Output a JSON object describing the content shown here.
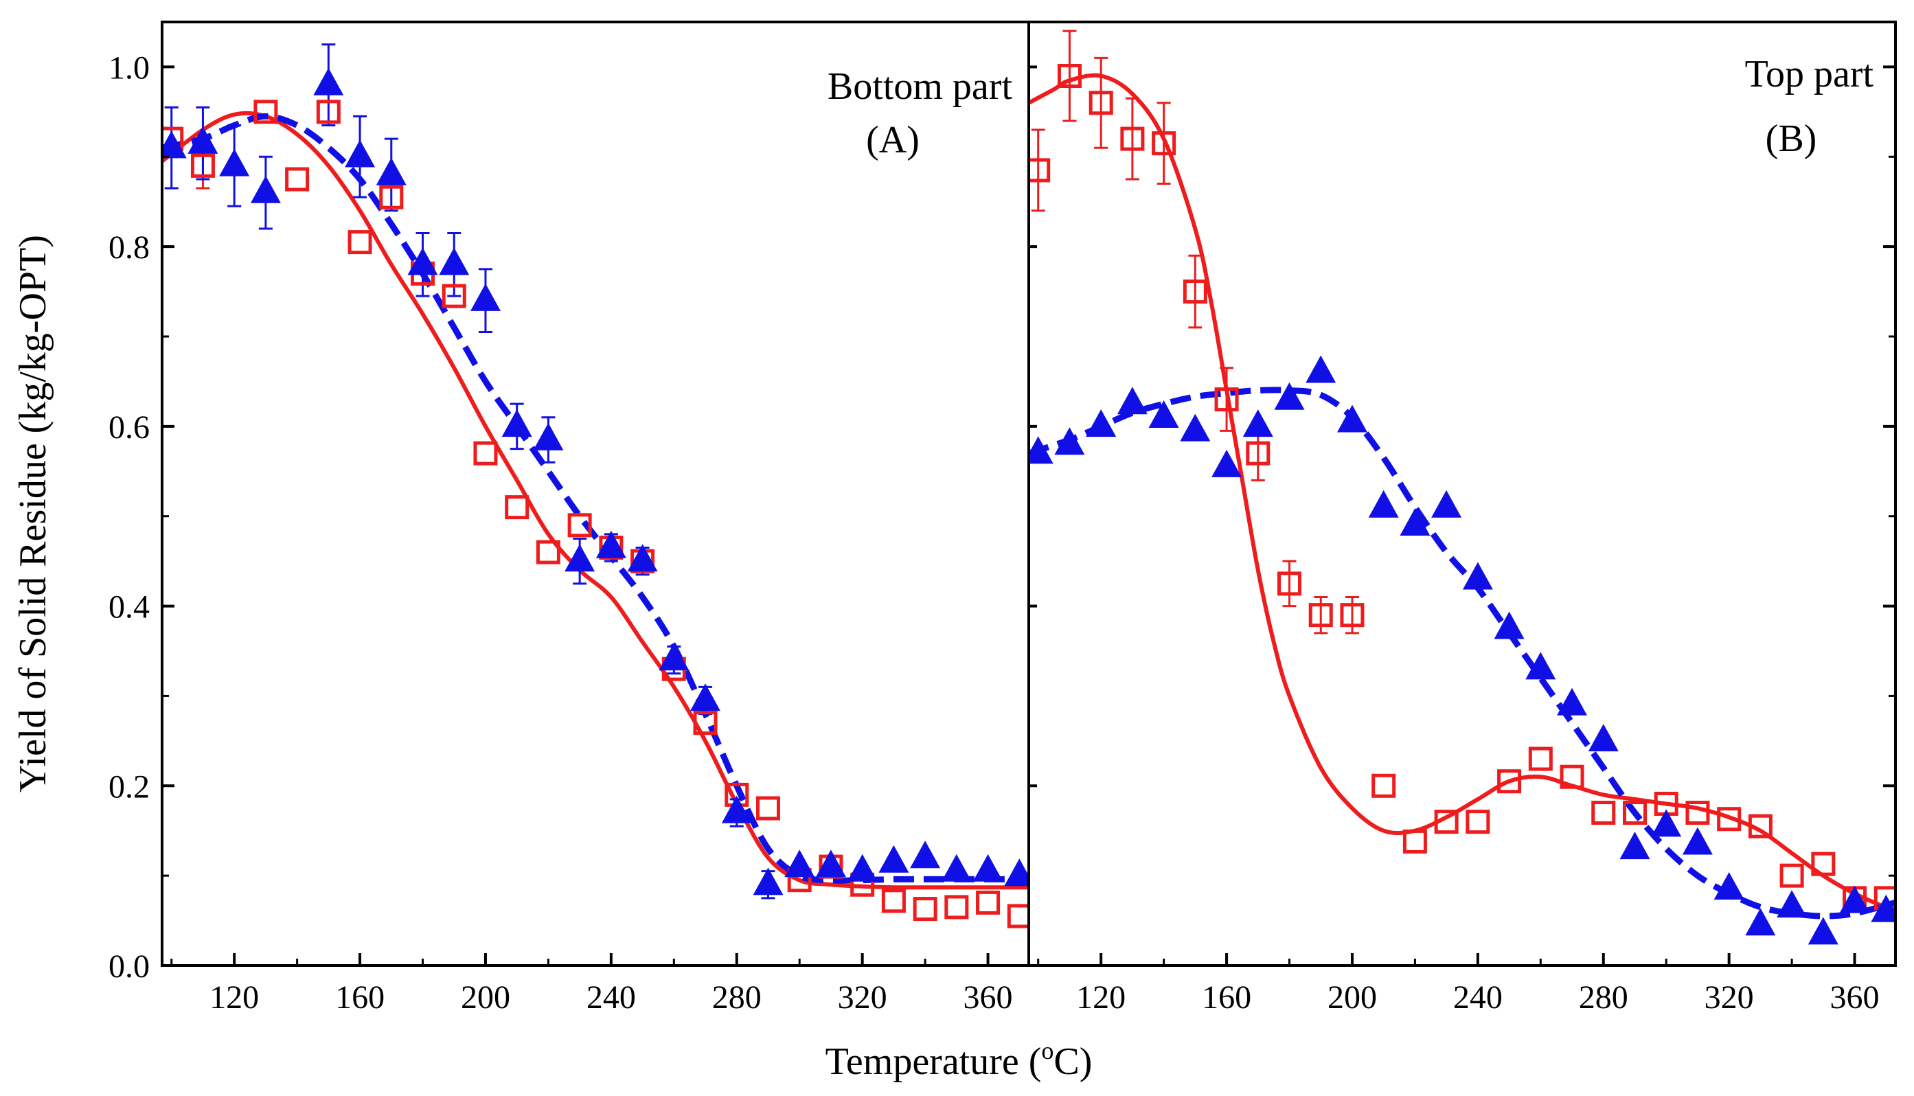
{
  "figure": {
    "y_axis_label": "Yield of Solid Residue (kg/kg-OPT)",
    "x_axis_label": "Temperature (",
    "x_axis_unit_super": "o",
    "x_axis_unit": "C)"
  },
  "chart_data": [
    {
      "type": "scatter",
      "panel": "A",
      "title": "Bottom part",
      "panel_label": "(A)",
      "xlabel": "Temperature (oC)",
      "ylabel": "Yield of Solid Residue (kg/kg-OPT)",
      "xlim": [
        97,
        373
      ],
      "ylim": [
        0,
        1.05
      ],
      "x_ticks": [
        120,
        160,
        200,
        240,
        280,
        320,
        360
      ],
      "y_ticks": [
        0.0,
        0.2,
        0.4,
        0.6,
        0.8,
        1.0
      ],
      "y_tick_labels": [
        "0.0",
        "0.2",
        "0.4",
        "0.6",
        "0.8",
        "1.0"
      ],
      "series": [
        {
          "name": "squares",
          "marker": "square-open",
          "color": "#ee1c1c",
          "x": [
            100,
            110,
            130,
            140,
            150,
            160,
            170,
            180,
            190,
            200,
            210,
            220,
            230,
            240,
            250,
            260,
            270,
            280,
            290,
            300,
            310,
            320,
            330,
            340,
            350,
            360,
            370
          ],
          "y": [
            0.92,
            0.89,
            0.95,
            0.875,
            0.95,
            0.805,
            0.855,
            0.77,
            0.745,
            0.57,
            0.51,
            0.46,
            0.49,
            0.465,
            0.45,
            0.33,
            0.27,
            0.19,
            0.175,
            0.095,
            0.11,
            0.09,
            0.072,
            0.063,
            0.065,
            0.07,
            0.055
          ],
          "err": [
            0,
            0.025,
            0,
            0,
            0,
            0,
            0,
            0,
            0,
            0,
            0,
            0,
            0,
            0,
            0,
            0,
            0,
            0,
            0,
            0,
            0,
            0,
            0,
            0,
            0,
            0,
            0
          ]
        },
        {
          "name": "triangles",
          "marker": "triangle-filled",
          "color": "#1010e6",
          "x": [
            100,
            110,
            120,
            130,
            150,
            160,
            170,
            180,
            190,
            200,
            210,
            220,
            230,
            240,
            250,
            260,
            270,
            280,
            290,
            300,
            310,
            320,
            330,
            340,
            350,
            360,
            370
          ],
          "y": [
            0.91,
            0.915,
            0.89,
            0.86,
            0.98,
            0.9,
            0.88,
            0.78,
            0.78,
            0.74,
            0.6,
            0.585,
            0.45,
            0.465,
            0.45,
            0.34,
            0.295,
            0.17,
            0.09,
            0.11,
            0.11,
            0.105,
            0.115,
            0.12,
            0.105,
            0.105,
            0.1
          ],
          "err": [
            0.045,
            0.04,
            0.045,
            0.04,
            0.045,
            0.045,
            0.04,
            0.035,
            0.035,
            0.035,
            0.025,
            0.025,
            0.025,
            0.015,
            0.015,
            0.015,
            0.015,
            0.015,
            0.015,
            0,
            0,
            0,
            0,
            0,
            0,
            0,
            0
          ]
        }
      ],
      "fits": [
        {
          "name": "squares fit",
          "style": "solid",
          "color": "#ee1c1c",
          "x": [
            97,
            110,
            120,
            130,
            140,
            150,
            160,
            170,
            180,
            190,
            200,
            210,
            220,
            230,
            240,
            250,
            260,
            270,
            280,
            290,
            300,
            310,
            320,
            330,
            340,
            350,
            360,
            373
          ],
          "y": [
            0.895,
            0.93,
            0.947,
            0.945,
            0.925,
            0.89,
            0.84,
            0.78,
            0.725,
            0.665,
            0.6,
            0.54,
            0.48,
            0.44,
            0.41,
            0.36,
            0.31,
            0.25,
            0.18,
            0.12,
            0.095,
            0.09,
            0.088,
            0.087,
            0.087,
            0.087,
            0.087,
            0.087
          ]
        },
        {
          "name": "triangles fit",
          "style": "dashed",
          "color": "#1010e6",
          "x": [
            97,
            110,
            120,
            130,
            140,
            150,
            160,
            170,
            180,
            190,
            200,
            210,
            220,
            230,
            240,
            250,
            260,
            270,
            280,
            290,
            300,
            310,
            320,
            330,
            340,
            350,
            360,
            373
          ],
          "y": [
            0.91,
            0.92,
            0.935,
            0.945,
            0.935,
            0.91,
            0.875,
            0.825,
            0.77,
            0.71,
            0.65,
            0.6,
            0.55,
            0.5,
            0.455,
            0.41,
            0.355,
            0.28,
            0.2,
            0.13,
            0.1,
            0.095,
            0.095,
            0.096,
            0.096,
            0.096,
            0.096,
            0.096
          ]
        }
      ]
    },
    {
      "type": "scatter",
      "panel": "B",
      "title": "Top part",
      "panel_label": "(B)",
      "xlabel": "Temperature (oC)",
      "ylabel": "Yield of Solid Residue (kg/kg-OPT)",
      "xlim": [
        97,
        373
      ],
      "ylim": [
        0,
        1.05
      ],
      "x_ticks": [
        120,
        160,
        200,
        240,
        280,
        320,
        360
      ],
      "y_ticks": [
        0.0,
        0.2,
        0.4,
        0.6,
        0.8,
        1.0
      ],
      "series": [
        {
          "name": "squares",
          "marker": "square-open",
          "color": "#ee1c1c",
          "x": [
            100,
            110,
            120,
            130,
            140,
            150,
            160,
            170,
            180,
            190,
            200,
            210,
            220,
            230,
            240,
            250,
            260,
            270,
            280,
            290,
            300,
            310,
            320,
            330,
            340,
            350,
            360,
            370
          ],
          "y": [
            0.885,
            0.99,
            0.96,
            0.92,
            0.915,
            0.75,
            0.63,
            0.57,
            0.425,
            0.39,
            0.39,
            0.2,
            0.138,
            0.16,
            0.16,
            0.205,
            0.23,
            0.21,
            0.17,
            0.17,
            0.18,
            0.17,
            0.163,
            0.155,
            0.1,
            0.113,
            0.075,
            0.075
          ],
          "err": [
            0.045,
            0.05,
            0.05,
            0.045,
            0.045,
            0.04,
            0.035,
            0.03,
            0.025,
            0.02,
            0.02,
            0,
            0,
            0,
            0,
            0,
            0,
            0,
            0,
            0,
            0,
            0,
            0,
            0,
            0,
            0,
            0,
            0
          ]
        },
        {
          "name": "triangles",
          "marker": "triangle-filled",
          "color": "#1010e6",
          "x": [
            100,
            110,
            120,
            130,
            140,
            150,
            160,
            170,
            180,
            190,
            200,
            210,
            220,
            230,
            240,
            250,
            260,
            270,
            280,
            290,
            300,
            310,
            320,
            330,
            340,
            350,
            360,
            370
          ],
          "y": [
            0.57,
            0.58,
            0.6,
            0.625,
            0.61,
            0.595,
            0.555,
            0.6,
            0.63,
            0.66,
            0.605,
            0.51,
            0.49,
            0.51,
            0.43,
            0.375,
            0.33,
            0.29,
            0.25,
            0.13,
            0.155,
            0.135,
            0.085,
            0.045,
            0.065,
            0.035,
            0.07,
            0.06
          ],
          "err": [
            0,
            0,
            0,
            0,
            0,
            0,
            0,
            0,
            0,
            0,
            0,
            0,
            0,
            0,
            0,
            0,
            0,
            0,
            0,
            0,
            0,
            0,
            0,
            0,
            0,
            0,
            0,
            0
          ]
        }
      ],
      "fits": [
        {
          "name": "squares fit",
          "style": "solid",
          "color": "#ee1c1c",
          "x": [
            97,
            105,
            110,
            120,
            130,
            140,
            150,
            155,
            160,
            165,
            170,
            175,
            180,
            190,
            200,
            210,
            220,
            230,
            240,
            250,
            260,
            270,
            280,
            290,
            300,
            310,
            320,
            330,
            340,
            350,
            360,
            373
          ],
          "y": [
            0.96,
            0.975,
            0.985,
            0.99,
            0.97,
            0.92,
            0.82,
            0.74,
            0.64,
            0.54,
            0.44,
            0.36,
            0.3,
            0.22,
            0.175,
            0.15,
            0.15,
            0.165,
            0.185,
            0.205,
            0.21,
            0.2,
            0.19,
            0.185,
            0.18,
            0.175,
            0.165,
            0.15,
            0.125,
            0.1,
            0.08,
            0.06
          ]
        },
        {
          "name": "triangles fit",
          "style": "dashed",
          "color": "#1010e6",
          "x": [
            97,
            110,
            120,
            130,
            140,
            150,
            160,
            170,
            180,
            190,
            200,
            210,
            220,
            230,
            240,
            250,
            260,
            270,
            280,
            290,
            300,
            310,
            320,
            330,
            340,
            350,
            360,
            373
          ],
          "y": [
            0.57,
            0.585,
            0.6,
            0.615,
            0.625,
            0.633,
            0.637,
            0.64,
            0.64,
            0.635,
            0.61,
            0.565,
            0.51,
            0.46,
            0.42,
            0.37,
            0.32,
            0.27,
            0.22,
            0.17,
            0.13,
            0.1,
            0.08,
            0.065,
            0.058,
            0.055,
            0.058,
            0.07
          ]
        }
      ]
    }
  ]
}
